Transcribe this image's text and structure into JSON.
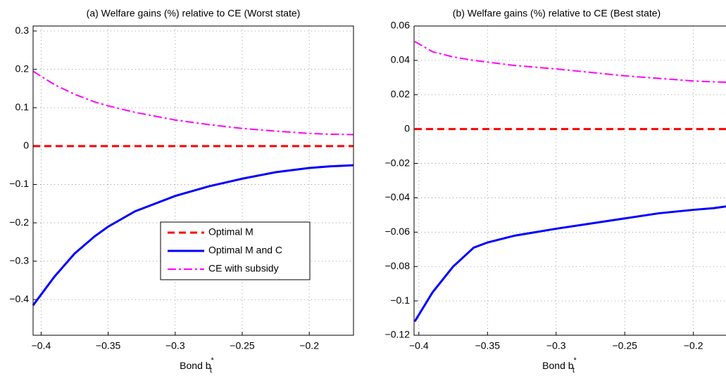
{
  "chart_data": [
    {
      "type": "line",
      "title": "(a) Welfare gains (%) relative to CE (Worst state)",
      "xlabel": "Bond b",
      "xlabel_sub": "t",
      "xlabel_sup": "*",
      "x": [
        -0.406,
        -0.39,
        -0.375,
        -0.36,
        -0.35,
        -0.33,
        -0.3,
        -0.275,
        -0.25,
        -0.225,
        -0.2,
        -0.185,
        -0.167
      ],
      "series": [
        {
          "name": "Optimal M",
          "color": "#ff0000",
          "dash": "dashed",
          "values": [
            0,
            0,
            0,
            0,
            0,
            0,
            0,
            0,
            0,
            0,
            0,
            0,
            0
          ]
        },
        {
          "name": "Optimal M and C",
          "color": "#0000ff",
          "dash": "solid",
          "values": [
            -0.415,
            -0.34,
            -0.28,
            -0.235,
            -0.21,
            -0.17,
            -0.13,
            -0.105,
            -0.085,
            -0.068,
            -0.057,
            -0.053,
            -0.05
          ]
        },
        {
          "name": "CE with subsidy",
          "color": "#ff00ff",
          "dash": "dashdot",
          "values": [
            0.195,
            0.16,
            0.135,
            0.115,
            0.105,
            0.088,
            0.068,
            0.056,
            0.046,
            0.039,
            0.033,
            0.031,
            0.03
          ]
        }
      ],
      "xlim": [
        -0.406,
        -0.167
      ],
      "xticks": [
        {
          "value": -0.4,
          "label": "−0.4"
        },
        {
          "value": -0.35,
          "label": "−0.35"
        },
        {
          "value": -0.3,
          "label": "−0.3"
        },
        {
          "value": -0.25,
          "label": "−0.25"
        },
        {
          "value": -0.2,
          "label": "−0.2"
        }
      ],
      "ylim": [
        -0.493,
        0.313
      ],
      "yticks": [
        {
          "value": -0.4,
          "label": "−0.4"
        },
        {
          "value": -0.3,
          "label": "−0.3"
        },
        {
          "value": -0.2,
          "label": "−0.2"
        },
        {
          "value": -0.1,
          "label": "−0.1"
        },
        0,
        0.1,
        0.2,
        0.3
      ],
      "grid": true,
      "legend": "lower right"
    },
    {
      "type": "line",
      "title": "(b) Welfare gains (%) relative to CE (Best state)",
      "xlabel": "Bond b",
      "xlabel_sub": "t",
      "xlabel_sup": "*",
      "x": [
        -0.403,
        -0.39,
        -0.375,
        -0.36,
        -0.35,
        -0.33,
        -0.3,
        -0.275,
        -0.25,
        -0.225,
        -0.2,
        -0.185,
        -0.167
      ],
      "series": [
        {
          "color": "#ff0000",
          "dash": "dashed",
          "values": [
            0,
            0,
            0,
            0,
            0,
            0,
            0,
            0,
            0,
            0,
            0,
            0,
            0
          ]
        },
        {
          "color": "#0000ff",
          "dash": "solid",
          "values": [
            -0.112,
            -0.095,
            -0.08,
            -0.069,
            -0.066,
            -0.062,
            -0.058,
            -0.055,
            -0.052,
            -0.049,
            -0.047,
            -0.046,
            -0.044
          ]
        },
        {
          "color": "#ff00ff",
          "dash": "dashdot",
          "values": [
            0.051,
            0.045,
            0.042,
            0.04,
            0.039,
            0.037,
            0.035,
            0.033,
            0.031,
            0.0295,
            0.028,
            0.0275,
            0.027
          ]
        }
      ],
      "xlim": [
        -0.4035,
        -0.167
      ],
      "xticks": [
        {
          "value": -0.4,
          "label": "−0.4"
        },
        {
          "value": -0.35,
          "label": "−0.35"
        },
        {
          "value": -0.3,
          "label": "−0.3"
        },
        {
          "value": -0.25,
          "label": "−0.25"
        },
        {
          "value": -0.2,
          "label": "−0.2"
        }
      ],
      "ylim": [
        -0.12,
        0.06
      ],
      "yticks": [
        {
          "value": -0.12,
          "label": "−0.12"
        },
        {
          "value": -0.1,
          "label": "−0.1"
        },
        {
          "value": -0.08,
          "label": "−0.08"
        },
        {
          "value": -0.06,
          "label": "−0.06"
        },
        {
          "value": -0.04,
          "label": "−0.04"
        },
        {
          "value": -0.02,
          "label": "−0.02"
        },
        0,
        0.02,
        0.04,
        0.06
      ],
      "grid": true
    }
  ]
}
